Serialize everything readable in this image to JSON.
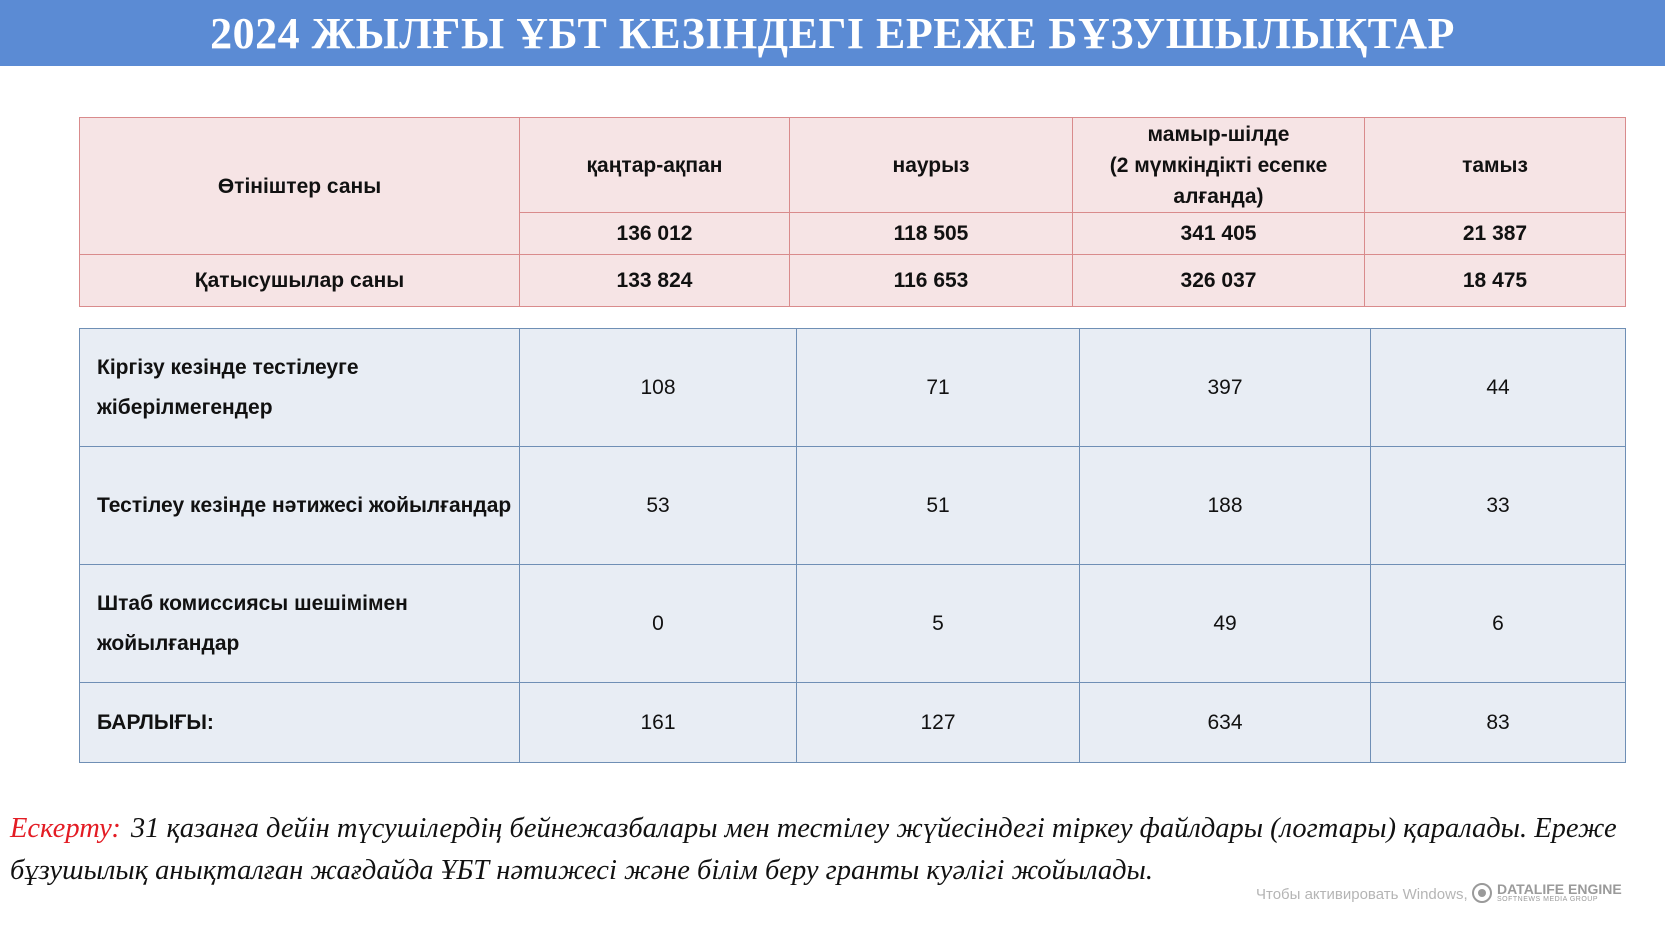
{
  "title": "2024 ЖЫЛҒЫ ҰБТ КЕЗІНДЕГІ ЕРЕЖЕ БҰЗУШЫЛЫҚТАР",
  "applications_table": {
    "applications_label": "Өтініштер саны",
    "participants_label": "Қатысушылар саны",
    "columns": [
      {
        "header": "қаңтар-ақпан",
        "applications": "136 012",
        "participants": "133 824"
      },
      {
        "header": "наурыз",
        "applications": "118 505",
        "participants": "116 653"
      },
      {
        "header": "мамыр-шілде\n(2 мүмкіндікті есепке алғанда)",
        "applications": "341 405",
        "participants": "326 037"
      },
      {
        "header": "тамыз",
        "applications": "21 387",
        "participants": "18 475"
      }
    ]
  },
  "violations_table": {
    "rows": [
      {
        "label": "Кіргізу кезінде  тестілеуге жіберілмегендер",
        "values": [
          "108",
          "71",
          "397",
          "44"
        ]
      },
      {
        "label": "Тестілеу кезінде нәтижесі жойылғандар",
        "values": [
          "53",
          "51",
          "188",
          "33"
        ]
      },
      {
        "label": "Штаб комиссиясы шешімімен жойылғандар",
        "values": [
          "0",
          "5",
          "49",
          "6"
        ]
      }
    ],
    "total": {
      "label": "БАРЛЫҒЫ:",
      "values": [
        "161",
        "127",
        "634",
        "83"
      ]
    }
  },
  "note": {
    "label": "Ескерту:",
    "text": "31 қазанға дейін түсушілердің бейнежазбалары мен тестілеу жүйесіндегі тіркеу файлдары (логтары) қаралады. Ереже бұзушылық анықталған жағдайда ҰБТ нәтижесі және білім беру гранты куәлігі жойылады."
  },
  "watermark": {
    "activation_text": "Чтобы активировать Windows,",
    "brand": "DATALIFE ENGINE",
    "brand_sub": "SOFTNEWS MEDIA GROUP"
  }
}
